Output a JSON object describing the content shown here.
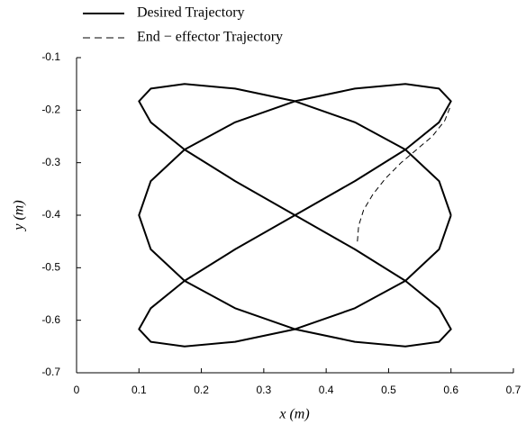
{
  "chart_data": {
    "type": "line",
    "xlabel": "x (m)",
    "ylabel": "y (m)",
    "xlim": [
      0,
      0.7
    ],
    "xticks": [
      0,
      0.1,
      0.2,
      0.3,
      0.4,
      0.5,
      0.6,
      0.7
    ],
    "ylim": [
      -0.7,
      -0.1
    ],
    "yticks": [
      -0.7,
      -0.6,
      -0.5,
      -0.4,
      -0.3,
      -0.2,
      -0.1
    ],
    "legend": "top-left",
    "series": [
      {
        "name": "Desired Trajectory",
        "color": "#000000",
        "dash": "solid",
        "x": [
          0.6,
          0.581,
          0.527,
          0.446,
          0.35,
          0.254,
          0.173,
          0.119,
          0.1,
          0.119,
          0.173,
          0.254,
          0.35,
          0.446,
          0.527,
          0.581,
          0.6,
          0.581,
          0.527,
          0.446,
          0.35,
          0.254,
          0.173,
          0.119,
          0.1,
          0.119,
          0.173,
          0.254,
          0.35,
          0.446,
          0.527,
          0.581,
          0.6,
          0.581,
          0.527,
          0.446,
          0.35,
          0.254,
          0.173,
          0.119,
          0.1,
          0.119,
          0.173,
          0.254,
          0.35,
          0.446,
          0.527,
          0.581,
          0.6
        ],
        "y": [
          -0.4,
          -0.335,
          -0.275,
          -0.223,
          -0.183,
          -0.159,
          -0.15,
          -0.159,
          -0.183,
          -0.223,
          -0.275,
          -0.335,
          -0.4,
          -0.465,
          -0.525,
          -0.577,
          -0.617,
          -0.641,
          -0.65,
          -0.641,
          -0.617,
          -0.577,
          -0.525,
          -0.465,
          -0.4,
          -0.335,
          -0.275,
          -0.223,
          -0.183,
          -0.159,
          -0.15,
          -0.159,
          -0.183,
          -0.223,
          -0.275,
          -0.335,
          -0.4,
          -0.465,
          -0.525,
          -0.577,
          -0.617,
          -0.641,
          -0.65,
          -0.641,
          -0.617,
          -0.577,
          -0.525,
          -0.465,
          -0.4
        ]
      },
      {
        "name": "End − effector Trajectory",
        "color": "#000000",
        "dash": "dashed",
        "x": [
          0.45,
          0.452,
          0.46,
          0.475,
          0.495,
          0.52,
          0.545,
          0.57,
          0.59,
          0.6
        ],
        "y": [
          -0.45,
          -0.42,
          -0.39,
          -0.36,
          -0.33,
          -0.3,
          -0.275,
          -0.25,
          -0.22,
          -0.19
        ]
      }
    ]
  }
}
